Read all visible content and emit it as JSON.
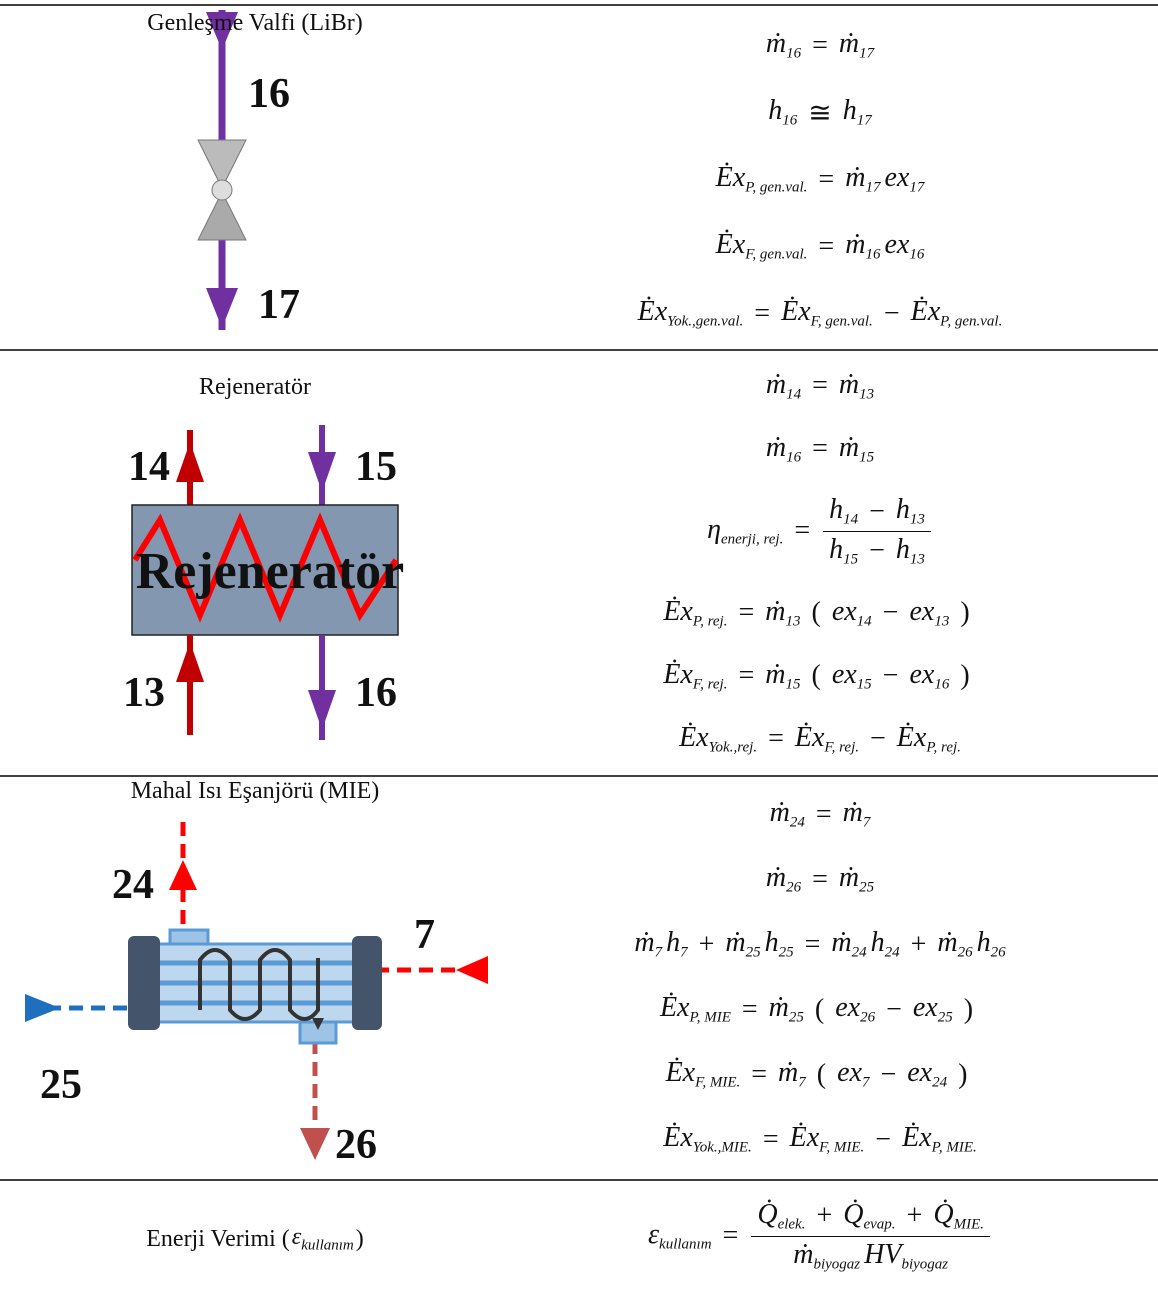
{
  "rows": [
    {
      "label": [
        "Genleşme Valfi (LiBr)"
      ],
      "diagram": {
        "labels": [
          "16",
          "17"
        ]
      },
      "equations": [
        [
          {
            "b": "ṁ",
            "s": "16"
          },
          "=",
          {
            "b": "ṁ",
            "s": "17"
          }
        ],
        [
          {
            "b": "h",
            "s": "16"
          },
          "≅",
          {
            "b": "h",
            "s": "17"
          }
        ],
        [
          {
            "b": "Ėx",
            "s": "P, gen.val."
          },
          "=",
          {
            "b": "ṁ",
            "s": "17"
          },
          {
            "b": "ex",
            "s": "17"
          }
        ],
        [
          {
            "b": "Ėx",
            "s": "F, gen.val."
          },
          "=",
          {
            "b": "ṁ",
            "s": "16"
          },
          {
            "b": "ex",
            "s": "16"
          }
        ],
        [
          {
            "b": "Ėx",
            "s": "Yok.,gen.val."
          },
          "=",
          {
            "b": "Ėx",
            "s": "F, gen.val."
          },
          "−",
          {
            "b": "Ėx",
            "s": "P, gen.val."
          }
        ]
      ]
    },
    {
      "label": [
        "Rejeneratör"
      ],
      "diagram": {
        "title": "Rejeneratör",
        "labels": [
          "14",
          "15",
          "13",
          "16"
        ]
      },
      "equations": [
        [
          {
            "b": "ṁ",
            "s": "14"
          },
          "=",
          {
            "b": "ṁ",
            "s": "13"
          }
        ],
        [
          {
            "b": "ṁ",
            "s": "16"
          },
          "=",
          {
            "b": "ṁ",
            "s": "15"
          }
        ],
        [
          {
            "b": "η",
            "s": "enerji, rej."
          },
          "=",
          {
            "num": [
              {
                "b": "h",
                "s": "14"
              },
              "−",
              {
                "b": "h",
                "s": "13"
              }
            ],
            "den": [
              {
                "b": "h",
                "s": "15"
              },
              "−",
              {
                "b": "h",
                "s": "13"
              }
            ]
          }
        ],
        [
          {
            "b": "Ėx",
            "s": "P, rej."
          },
          "=",
          {
            "b": "ṁ",
            "s": "13"
          },
          "(",
          {
            "b": "ex",
            "s": "14"
          },
          "−",
          {
            "b": "ex",
            "s": "13"
          },
          ")"
        ],
        [
          {
            "b": "Ėx",
            "s": "F, rej."
          },
          "=",
          {
            "b": "ṁ",
            "s": "15"
          },
          "(",
          {
            "b": "ex",
            "s": "15"
          },
          "−",
          {
            "b": "ex",
            "s": "16"
          },
          ")"
        ],
        [
          {
            "b": "Ėx",
            "s": "Yok.,rej."
          },
          "=",
          {
            "b": "Ėx",
            "s": "F, rej."
          },
          "−",
          {
            "b": "Ėx",
            "s": "P, rej."
          }
        ]
      ]
    },
    {
      "label": [
        "Mahal Isı Eşanjörü (MIE)"
      ],
      "diagram": {
        "labels": [
          "24",
          "7",
          "25",
          "26"
        ]
      },
      "equations": [
        [
          {
            "b": "ṁ",
            "s": "24"
          },
          "=",
          {
            "b": "ṁ",
            "s": "7"
          }
        ],
        [
          {
            "b": "ṁ",
            "s": "26"
          },
          "=",
          {
            "b": "ṁ",
            "s": "25"
          }
        ],
        [
          {
            "b": "ṁ",
            "s": "7"
          },
          {
            "b": "h",
            "s": "7"
          },
          "+",
          {
            "b": "ṁ",
            "s": "25"
          },
          {
            "b": "h",
            "s": "25"
          },
          "=",
          {
            "b": "ṁ",
            "s": "24"
          },
          {
            "b": "h",
            "s": "24"
          },
          "+",
          {
            "b": "ṁ",
            "s": "26"
          },
          {
            "b": "h",
            "s": "26"
          }
        ],
        [
          {
            "b": "Ėx",
            "s": "P, MIE"
          },
          "=",
          {
            "b": "ṁ",
            "s": "25"
          },
          "(",
          {
            "b": "ex",
            "s": "26"
          },
          "−",
          {
            "b": "ex",
            "s": "25"
          },
          ")"
        ],
        [
          {
            "b": "Ėx",
            "s": "F, MIE."
          },
          "=",
          {
            "b": "ṁ",
            "s": "7"
          },
          "(",
          {
            "b": "ex",
            "s": "7"
          },
          "−",
          {
            "b": "ex",
            "s": "24"
          },
          ")"
        ],
        [
          {
            "b": "Ėx",
            "s": "Yok.,MIE."
          },
          "=",
          {
            "b": "Ėx",
            "s": "F, MIE."
          },
          "−",
          {
            "b": "Ėx",
            "s": "P, MIE."
          }
        ]
      ]
    },
    {
      "label": [
        "Enerji Verimi (",
        {
          "b": "ε",
          "s": "kullanım"
        },
        ")"
      ],
      "equations": [
        [
          {
            "b": "ε",
            "s": "kullanım"
          },
          "=",
          {
            "num": [
              {
                "b": "Q̇",
                "s": "elek."
              },
              "+",
              {
                "b": "Q̇",
                "s": "evap."
              },
              "+",
              {
                "b": "Q̇",
                "s": "MIE."
              }
            ],
            "den": [
              {
                "b": "ṁ",
                "s": "biyogaz"
              },
              {
                "b": "HV",
                "s": "biyogaz"
              }
            ]
          }
        ]
      ]
    }
  ]
}
